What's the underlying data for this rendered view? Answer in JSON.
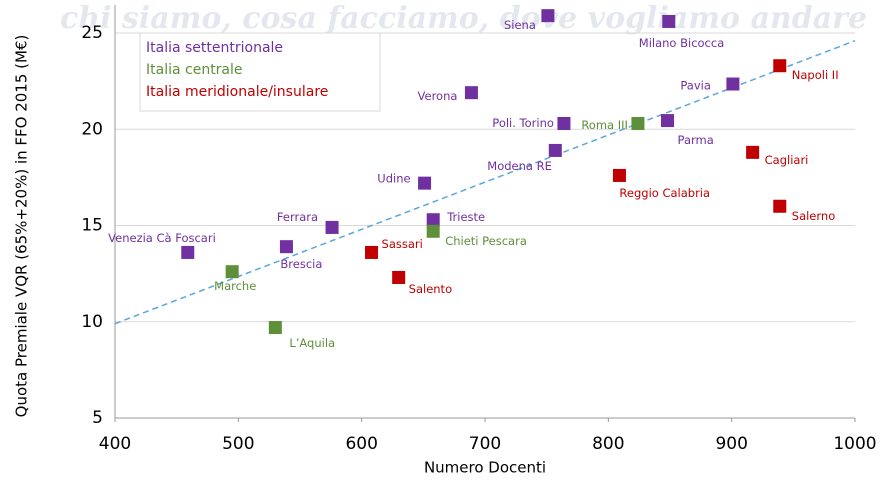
{
  "background_text": "chi siamo, cosa facciamo, dove vogliamo andare",
  "chart_data": {
    "type": "scatter",
    "x_label": "Numero Docenti",
    "y_label": "Quota Premiale VQR (65%+20%) in FFO 2015 (M€)",
    "xlim": [
      400,
      1000
    ],
    "xticks": [
      400,
      500,
      600,
      700,
      800,
      900,
      1000
    ],
    "ylim": [
      5,
      26.5
    ],
    "yticks": [
      5,
      10,
      15,
      20,
      25
    ],
    "grid": true,
    "legend": "upper left",
    "trendline": {
      "color": "#5aa7de",
      "x": [
        400,
        1000
      ],
      "values": [
        9.9,
        24.6
      ]
    },
    "series": [
      {
        "name": "Italia settentrionale",
        "color": "#7030a0",
        "labels": [
          "Siena",
          "Milano Bicocca",
          "Pavia",
          "Verona",
          "Poli. Torino",
          "Parma",
          "Modena RE",
          "Udine",
          "Trieste",
          "Ferrara",
          "Brescia",
          "Venezia Cà Foscari"
        ],
        "x": [
          751,
          849,
          901,
          689,
          764,
          848,
          757,
          651,
          658,
          576,
          539,
          459
        ],
        "values": [
          25.9,
          25.6,
          22.35,
          21.9,
          20.3,
          20.45,
          18.9,
          17.2,
          15.3,
          14.9,
          13.9,
          13.6
        ]
      },
      {
        "name": "Italia centrale",
        "color": "#5e8f3a",
        "labels": [
          "Roma III",
          "Chieti Pescara",
          "Marche",
          "L’Aquila"
        ],
        "x": [
          824,
          658,
          495,
          530
        ],
        "values": [
          20.3,
          14.7,
          12.6,
          9.7
        ]
      },
      {
        "name": "Italia meridionale/insulare",
        "color": "#c00000",
        "labels": [
          "Napoli II",
          "Cagliari",
          "Reggio Calabria",
          "Salerno",
          "Sassari",
          "Salento"
        ],
        "x": [
          939,
          917,
          809,
          939,
          608,
          630
        ],
        "values": [
          23.3,
          18.8,
          17.6,
          16.0,
          13.6,
          12.3
        ]
      }
    ]
  }
}
